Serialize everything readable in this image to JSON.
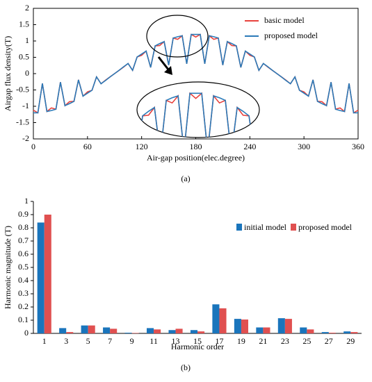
{
  "chart_data": [
    {
      "type": "line",
      "caption": "(a)",
      "x_label": "Air-gap position(elec.degree)",
      "y_label": "Airgap flux density(T)",
      "x": [
        0,
        5,
        10,
        15,
        20,
        25,
        30,
        35,
        40,
        45,
        50,
        55,
        60,
        65,
        70,
        75,
        80,
        85,
        90,
        95,
        100,
        105,
        110,
        115,
        120,
        125,
        130,
        135,
        140,
        145,
        150,
        155,
        160,
        165,
        170,
        175,
        180,
        185,
        190,
        195,
        200,
        205,
        210,
        215,
        220,
        225,
        230,
        235,
        240,
        245,
        250,
        255,
        260,
        265,
        270,
        275,
        280,
        285,
        290,
        295,
        300,
        305,
        310,
        315,
        320,
        325,
        330,
        335,
        340,
        345,
        350,
        355,
        360
      ],
      "series": [
        {
          "name": "basic model",
          "color": "#e8413c",
          "values": [
            -1.12,
            -1.2,
            -0.3,
            -1.16,
            -1.05,
            -1.09,
            -0.26,
            -0.98,
            -0.86,
            -0.85,
            -0.19,
            -0.69,
            -0.56,
            -0.51,
            -0.1,
            -0.31,
            -0.2,
            -0.1,
            0,
            0.1,
            0.2,
            0.31,
            0.1,
            0.51,
            0.56,
            0.69,
            0.19,
            0.85,
            0.86,
            0.98,
            0.26,
            1.09,
            1.05,
            1.16,
            0.3,
            1.2,
            1.12,
            1.2,
            0.3,
            1.16,
            1.05,
            1.09,
            0.26,
            0.98,
            0.86,
            0.85,
            0.19,
            0.69,
            0.56,
            0.51,
            0.1,
            0.31,
            0.2,
            0.1,
            0,
            -0.1,
            -0.2,
            -0.31,
            -0.1,
            -0.51,
            -0.56,
            -0.69,
            -0.19,
            -0.85,
            -0.86,
            -0.98,
            -0.26,
            -1.09,
            -1.05,
            -1.16,
            -0.3,
            -1.2,
            -1.12
          ]
        },
        {
          "name": "proposed model",
          "color": "#2a7ab8",
          "values": [
            -1.2,
            -1.2,
            -0.3,
            -1.16,
            -1.13,
            -1.09,
            -0.26,
            -0.98,
            -0.92,
            -0.85,
            -0.19,
            -0.69,
            -0.6,
            -0.51,
            -0.1,
            -0.31,
            -0.21,
            -0.1,
            0,
            0.1,
            0.21,
            0.31,
            0.1,
            0.51,
            0.6,
            0.69,
            0.19,
            0.85,
            0.92,
            0.98,
            0.26,
            1.09,
            1.13,
            1.16,
            0.3,
            1.2,
            1.2,
            1.2,
            0.3,
            1.16,
            1.13,
            1.09,
            0.26,
            0.98,
            0.92,
            0.85,
            0.19,
            0.69,
            0.6,
            0.51,
            0.1,
            0.31,
            0.21,
            0.1,
            0,
            -0.1,
            -0.21,
            -0.31,
            -0.1,
            -0.51,
            -0.6,
            -0.69,
            -0.19,
            -0.85,
            -0.92,
            -0.98,
            -0.26,
            -1.09,
            -1.13,
            -1.16,
            -0.3,
            -1.2,
            -1.2
          ]
        }
      ],
      "xlim": [
        0,
        360
      ],
      "xticks": [
        0,
        60,
        120,
        180,
        240,
        300,
        360
      ],
      "ylim": [
        -2,
        2
      ],
      "yticks": [
        -2,
        -1.5,
        -1,
        -0.5,
        0,
        0.5,
        1,
        1.5,
        2
      ],
      "legend": "upper right"
    },
    {
      "type": "bar",
      "caption": "(b)",
      "x_label": "Harmonic order",
      "y_label": "Harmonic magnitude (T)",
      "categories": [
        "1",
        "3",
        "5",
        "7",
        "9",
        "11",
        "13",
        "15",
        "17",
        "19",
        "21",
        "23",
        "25",
        "27",
        "29"
      ],
      "series": [
        {
          "name": "initial model",
          "color": "#1a75bc",
          "values": [
            0.84,
            0.04,
            0.06,
            0.045,
            0.005,
            0.04,
            0.025,
            0.025,
            0.22,
            0.11,
            0.045,
            0.115,
            0.045,
            0.01,
            0.015
          ]
        },
        {
          "name": "proposed model",
          "color": "#e05050",
          "values": [
            0.9,
            0.01,
            0.06,
            0.035,
            0.003,
            0.03,
            0.035,
            0.015,
            0.19,
            0.105,
            0.045,
            0.11,
            0.03,
            0.005,
            0.01
          ]
        }
      ],
      "ylim": [
        0,
        1
      ],
      "yticks": [
        0,
        0.1,
        0.2,
        0.3,
        0.4,
        0.5,
        0.6,
        0.7,
        0.8,
        0.9,
        1
      ],
      "legend": "upper right"
    }
  ]
}
